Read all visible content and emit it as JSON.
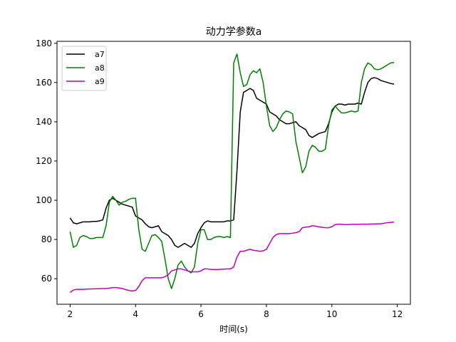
{
  "chart_data": {
    "type": "line",
    "title": "动力学参数a",
    "xlabel": "时间(s)",
    "ylabel": "",
    "xlim": [
      1.6,
      12.4
    ],
    "ylim": [
      47,
      181
    ],
    "xticks": [
      2,
      4,
      6,
      8,
      10,
      12
    ],
    "yticks": [
      60,
      80,
      100,
      120,
      140,
      160,
      180
    ],
    "legend_position": "top-left",
    "series": [
      {
        "name": "a7",
        "color": "#000000",
        "x": [
          2.0,
          2.1,
          2.2,
          2.3,
          2.4,
          2.5,
          2.6,
          2.7,
          2.8,
          2.9,
          3.0,
          3.1,
          3.2,
          3.3,
          3.4,
          3.5,
          3.6,
          3.7,
          3.8,
          3.9,
          4.0,
          4.1,
          4.2,
          4.3,
          4.4,
          4.5,
          4.6,
          4.7,
          4.8,
          4.9,
          5.0,
          5.1,
          5.2,
          5.3,
          5.4,
          5.5,
          5.6,
          5.7,
          5.8,
          5.9,
          6.0,
          6.1,
          6.2,
          6.3,
          6.4,
          6.5,
          6.6,
          6.7,
          6.8,
          6.9,
          7.0,
          7.1,
          7.2,
          7.3,
          7.4,
          7.5,
          7.6,
          7.7,
          7.8,
          7.9,
          8.0,
          8.1,
          8.2,
          8.3,
          8.4,
          8.5,
          8.6,
          8.7,
          8.8,
          8.9,
          9.0,
          9.1,
          9.2,
          9.3,
          9.4,
          9.5,
          9.6,
          9.7,
          9.8,
          9.9,
          10.0,
          10.1,
          10.2,
          10.3,
          10.4,
          10.5,
          10.6,
          10.7,
          10.8,
          10.9,
          11.0,
          11.1,
          11.2,
          11.3,
          11.4,
          11.5,
          11.6,
          11.7,
          11.8,
          11.9
        ],
        "y": [
          91,
          88.5,
          88,
          88.5,
          89,
          89,
          89,
          89.2,
          89.2,
          89.5,
          90,
          96,
          100,
          101,
          100,
          99,
          98,
          97.5,
          97,
          96.5,
          92,
          91,
          90,
          88,
          86.5,
          86,
          86.5,
          87,
          84,
          83,
          82,
          80,
          77,
          76,
          77,
          78,
          77,
          76,
          78,
          83,
          86,
          88.5,
          89.5,
          89,
          89,
          89,
          89,
          89,
          89.5,
          89.5,
          90,
          115,
          145,
          155,
          156,
          157,
          156,
          152,
          151,
          150,
          149,
          145,
          144,
          143,
          141,
          140,
          139,
          139,
          139.5,
          140,
          138,
          137,
          136,
          133,
          132,
          133,
          134,
          134.5,
          135,
          139,
          145,
          148,
          149,
          149,
          148.5,
          149,
          149,
          149,
          149.5,
          149,
          155,
          160,
          162,
          162.5,
          162,
          161,
          160.5,
          160,
          159.5,
          159.2
        ]
      },
      {
        "name": "a8",
        "color": "#008000",
        "x": [
          2.0,
          2.1,
          2.2,
          2.3,
          2.4,
          2.5,
          2.6,
          2.7,
          2.8,
          2.9,
          3.0,
          3.1,
          3.2,
          3.3,
          3.4,
          3.5,
          3.6,
          3.7,
          3.8,
          3.9,
          4.0,
          4.1,
          4.2,
          4.3,
          4.4,
          4.5,
          4.6,
          4.7,
          4.8,
          4.9,
          5.0,
          5.1,
          5.2,
          5.3,
          5.4,
          5.5,
          5.6,
          5.7,
          5.8,
          5.9,
          6.0,
          6.1,
          6.2,
          6.3,
          6.4,
          6.5,
          6.6,
          6.7,
          6.8,
          6.9,
          7.0,
          7.1,
          7.2,
          7.3,
          7.4,
          7.5,
          7.6,
          7.7,
          7.8,
          7.9,
          8.0,
          8.1,
          8.2,
          8.3,
          8.4,
          8.5,
          8.6,
          8.7,
          8.8,
          8.9,
          9.0,
          9.1,
          9.2,
          9.3,
          9.4,
          9.5,
          9.6,
          9.7,
          9.8,
          9.9,
          10.0,
          10.1,
          10.2,
          10.3,
          10.4,
          10.5,
          10.6,
          10.7,
          10.8,
          10.9,
          11.0,
          11.1,
          11.2,
          11.3,
          11.4,
          11.5,
          11.6,
          11.7,
          11.8,
          11.9
        ],
        "y": [
          84,
          76,
          77,
          81,
          82,
          81.5,
          80.5,
          80.5,
          81,
          81,
          81,
          87,
          99,
          102,
          100,
          97.5,
          99,
          99.5,
          100.5,
          101,
          101,
          85,
          75,
          74,
          78,
          82,
          82.5,
          81,
          79,
          70,
          60,
          55,
          60,
          67,
          69,
          66,
          64,
          63,
          66,
          78,
          85,
          85,
          80,
          80,
          81,
          81.5,
          81.5,
          81,
          81.5,
          81,
          170,
          174.5,
          165,
          158,
          159,
          164,
          166,
          165,
          167,
          160,
          148,
          138,
          135,
          137,
          141,
          144,
          145.5,
          145,
          144,
          130,
          122,
          114,
          117,
          125,
          128,
          127,
          125,
          125,
          126,
          138,
          146,
          148,
          146,
          144.5,
          144.5,
          145,
          145.5,
          145,
          145.5,
          160,
          167,
          170,
          169,
          167,
          166.5,
          167,
          168,
          169,
          170,
          170.2
        ]
      },
      {
        "name": "a9",
        "color": "#BF00BF",
        "x": [
          2.0,
          2.1,
          2.2,
          2.3,
          2.4,
          2.5,
          2.6,
          2.7,
          2.8,
          2.9,
          3.0,
          3.1,
          3.2,
          3.3,
          3.4,
          3.5,
          3.6,
          3.7,
          3.8,
          3.9,
          4.0,
          4.1,
          4.2,
          4.3,
          4.4,
          4.5,
          4.6,
          4.7,
          4.8,
          4.9,
          5.0,
          5.1,
          5.2,
          5.3,
          5.4,
          5.5,
          5.6,
          5.7,
          5.8,
          5.9,
          6.0,
          6.1,
          6.2,
          6.3,
          6.4,
          6.5,
          6.6,
          6.7,
          6.8,
          6.9,
          7.0,
          7.1,
          7.2,
          7.3,
          7.4,
          7.5,
          7.6,
          7.7,
          7.8,
          7.9,
          8.0,
          8.1,
          8.2,
          8.3,
          8.4,
          8.5,
          8.6,
          8.7,
          8.8,
          8.9,
          9.0,
          9.1,
          9.2,
          9.3,
          9.4,
          9.5,
          9.6,
          9.7,
          9.8,
          9.9,
          10.0,
          10.1,
          10.2,
          10.3,
          10.4,
          10.5,
          10.6,
          10.7,
          10.8,
          10.9,
          11.0,
          11.1,
          11.2,
          11.3,
          11.4,
          11.5,
          11.6,
          11.7,
          11.8,
          11.9
        ],
        "y": [
          53,
          54.2,
          54.6,
          54.6,
          54.6,
          54.7,
          54.8,
          54.8,
          54.9,
          54.9,
          55,
          55,
          55.2,
          55.5,
          55.5,
          55.3,
          55,
          54.5,
          54,
          53.8,
          54,
          56,
          59,
          60.5,
          60.5,
          60.5,
          60.5,
          60.5,
          60.5,
          61,
          62,
          64,
          64.5,
          65,
          65,
          64.5,
          64,
          63.5,
          63.5,
          63.5,
          64,
          65,
          65,
          64.7,
          64.7,
          64.7,
          64.8,
          64.9,
          65,
          65,
          66,
          71,
          74,
          74,
          74.5,
          75,
          74.5,
          74.3,
          74,
          74.2,
          75,
          78,
          81,
          82.5,
          83,
          83,
          83,
          83,
          83.2,
          83.5,
          84,
          86,
          86.3,
          86.5,
          87,
          86.8,
          86.5,
          86.2,
          86,
          86,
          86.5,
          87.6,
          87.8,
          87.7,
          87.6,
          87.6,
          87.7,
          87.7,
          87.7,
          87.8,
          87.8,
          87.8,
          87.9,
          87.9,
          88,
          88,
          88.3,
          88.6,
          88.7,
          88.9
        ]
      }
    ]
  }
}
